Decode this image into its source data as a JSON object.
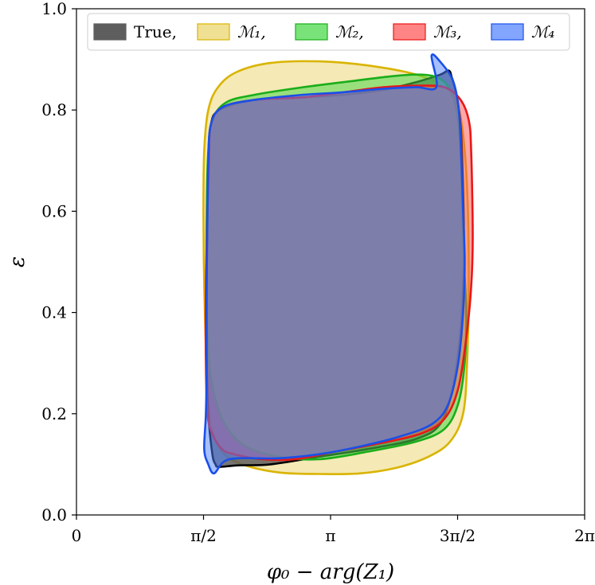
{
  "chart_data": {
    "type": "area",
    "title": "",
    "xlabel": "φ₀ − arg(Z₁)",
    "ylabel": "ε",
    "xlim": [
      0,
      6.2832
    ],
    "ylim": [
      0,
      1.0
    ],
    "x_ticks": [
      {
        "value": 0,
        "label": "0"
      },
      {
        "value": 1.5708,
        "label": "π/2"
      },
      {
        "value": 3.1416,
        "label": "π"
      },
      {
        "value": 4.7124,
        "label": "3π/2"
      },
      {
        "value": 6.2832,
        "label": "2π"
      }
    ],
    "y_ticks": [
      {
        "value": 0.0,
        "label": "0.0"
      },
      {
        "value": 0.2,
        "label": "0.2"
      },
      {
        "value": 0.4,
        "label": "0.4"
      },
      {
        "value": 0.6,
        "label": "0.6"
      },
      {
        "value": 0.8,
        "label": "0.8"
      },
      {
        "value": 1.0,
        "label": "1.0"
      }
    ],
    "grid": false,
    "legend_position": "top",
    "legend": [
      {
        "label": "True,",
        "italic": false
      },
      {
        "label": "ℳ₁,",
        "italic": true
      },
      {
        "label": "ℳ₂,",
        "italic": true
      },
      {
        "label": "ℳ₃,",
        "italic": true
      },
      {
        "label": "ℳ₄",
        "italic": true
      }
    ],
    "series": [
      {
        "key": "M1",
        "fill": "#e8cf5a",
        "stroke": "#d9b400",
        "fill_opacity": 0.45,
        "points": [
          [
            1.98,
            0.875
          ],
          [
            2.4,
            0.893
          ],
          [
            3.0,
            0.896
          ],
          [
            3.6,
            0.888
          ],
          [
            4.2,
            0.87
          ],
          [
            4.55,
            0.845
          ],
          [
            4.72,
            0.805
          ],
          [
            4.8,
            0.72
          ],
          [
            4.84,
            0.6
          ],
          [
            4.85,
            0.45
          ],
          [
            4.83,
            0.3
          ],
          [
            4.78,
            0.2
          ],
          [
            4.62,
            0.145
          ],
          [
            4.35,
            0.115
          ],
          [
            3.95,
            0.093
          ],
          [
            3.5,
            0.082
          ],
          [
            3.0,
            0.081
          ],
          [
            2.5,
            0.084
          ],
          [
            2.05,
            0.1
          ],
          [
            1.8,
            0.125
          ],
          [
            1.67,
            0.18
          ],
          [
            1.61,
            0.3
          ],
          [
            1.58,
            0.45
          ],
          [
            1.57,
            0.6
          ],
          [
            1.58,
            0.72
          ],
          [
            1.63,
            0.8
          ],
          [
            1.75,
            0.845
          ]
        ]
      },
      {
        "key": "True",
        "fill": "#5e5e5e",
        "stroke": "#000000",
        "fill_opacity": 0.85,
        "points": [
          [
            1.66,
            0.77
          ],
          [
            1.77,
            0.8
          ],
          [
            2.2,
            0.82
          ],
          [
            2.8,
            0.825
          ],
          [
            3.3,
            0.83
          ],
          [
            3.8,
            0.84
          ],
          [
            4.2,
            0.855
          ],
          [
            4.5,
            0.87
          ],
          [
            4.6,
            0.878
          ],
          [
            4.64,
            0.865
          ],
          [
            4.7,
            0.83
          ],
          [
            4.75,
            0.77
          ],
          [
            4.77,
            0.7
          ],
          [
            4.79,
            0.56
          ],
          [
            4.78,
            0.45
          ],
          [
            4.74,
            0.35
          ],
          [
            4.65,
            0.25
          ],
          [
            4.5,
            0.18
          ],
          [
            4.2,
            0.15
          ],
          [
            3.6,
            0.13
          ],
          [
            3.0,
            0.115
          ],
          [
            2.4,
            0.1
          ],
          [
            2.0,
            0.098
          ],
          [
            1.76,
            0.095
          ],
          [
            1.72,
            0.1
          ],
          [
            1.68,
            0.12
          ],
          [
            1.63,
            0.2
          ],
          [
            1.61,
            0.3
          ],
          [
            1.61,
            0.45
          ],
          [
            1.62,
            0.6
          ],
          [
            1.63,
            0.7
          ]
        ]
      },
      {
        "key": "M2",
        "fill": "#4cd94c",
        "stroke": "#1aad1a",
        "fill_opacity": 0.55,
        "points": [
          [
            1.68,
            0.78
          ],
          [
            1.85,
            0.815
          ],
          [
            2.2,
            0.83
          ],
          [
            2.8,
            0.845
          ],
          [
            3.3,
            0.855
          ],
          [
            3.8,
            0.865
          ],
          [
            4.2,
            0.87
          ],
          [
            4.45,
            0.865
          ],
          [
            4.6,
            0.845
          ],
          [
            4.7,
            0.8
          ],
          [
            4.75,
            0.72
          ],
          [
            4.77,
            0.6
          ],
          [
            4.79,
            0.5
          ],
          [
            4.82,
            0.4
          ],
          [
            4.8,
            0.3
          ],
          [
            4.72,
            0.22
          ],
          [
            4.55,
            0.17
          ],
          [
            4.2,
            0.145
          ],
          [
            3.6,
            0.125
          ],
          [
            3.0,
            0.11
          ],
          [
            2.5,
            0.115
          ],
          [
            2.1,
            0.135
          ],
          [
            1.85,
            0.175
          ],
          [
            1.7,
            0.24
          ],
          [
            1.63,
            0.32
          ],
          [
            1.61,
            0.45
          ],
          [
            1.61,
            0.6
          ],
          [
            1.63,
            0.72
          ]
        ]
      },
      {
        "key": "M3",
        "fill": "#ff5050",
        "stroke": "#e81818",
        "fill_opacity": 0.5,
        "points": [
          [
            1.66,
            0.77
          ],
          [
            1.8,
            0.805
          ],
          [
            2.2,
            0.82
          ],
          [
            2.8,
            0.825
          ],
          [
            3.3,
            0.835
          ],
          [
            3.8,
            0.845
          ],
          [
            4.2,
            0.848
          ],
          [
            4.55,
            0.845
          ],
          [
            4.75,
            0.82
          ],
          [
            4.85,
            0.78
          ],
          [
            4.88,
            0.72
          ],
          [
            4.9,
            0.55
          ],
          [
            4.88,
            0.45
          ],
          [
            4.82,
            0.35
          ],
          [
            4.72,
            0.25
          ],
          [
            4.55,
            0.19
          ],
          [
            4.25,
            0.16
          ],
          [
            3.7,
            0.14
          ],
          [
            3.2,
            0.125
          ],
          [
            2.7,
            0.11
          ],
          [
            2.3,
            0.11
          ],
          [
            1.95,
            0.12
          ],
          [
            1.8,
            0.13
          ],
          [
            1.68,
            0.16
          ],
          [
            1.62,
            0.2
          ],
          [
            1.6,
            0.3
          ],
          [
            1.6,
            0.45
          ],
          [
            1.62,
            0.6
          ],
          [
            1.64,
            0.7
          ]
        ]
      },
      {
        "key": "M4",
        "fill": "#4d7fff",
        "stroke": "#1a4fe8",
        "fill_opacity": 0.5,
        "points": [
          [
            1.66,
            0.77
          ],
          [
            1.8,
            0.805
          ],
          [
            2.2,
            0.82
          ],
          [
            2.8,
            0.83
          ],
          [
            3.3,
            0.835
          ],
          [
            3.8,
            0.842
          ],
          [
            4.2,
            0.845
          ],
          [
            4.45,
            0.845
          ],
          [
            4.39,
            0.907
          ],
          [
            4.5,
            0.895
          ],
          [
            4.65,
            0.86
          ],
          [
            4.72,
            0.81
          ],
          [
            4.75,
            0.74
          ],
          [
            4.78,
            0.6
          ],
          [
            4.8,
            0.5
          ],
          [
            4.78,
            0.4
          ],
          [
            4.72,
            0.3
          ],
          [
            4.6,
            0.22
          ],
          [
            4.4,
            0.18
          ],
          [
            4.0,
            0.155
          ],
          [
            3.5,
            0.135
          ],
          [
            3.0,
            0.12
          ],
          [
            2.5,
            0.112
          ],
          [
            2.0,
            0.112
          ],
          [
            1.82,
            0.105
          ],
          [
            1.7,
            0.082
          ],
          [
            1.63,
            0.1
          ],
          [
            1.58,
            0.13
          ],
          [
            1.6,
            0.2
          ],
          [
            1.61,
            0.3
          ],
          [
            1.61,
            0.45
          ],
          [
            1.62,
            0.6
          ],
          [
            1.63,
            0.7
          ]
        ]
      }
    ]
  }
}
